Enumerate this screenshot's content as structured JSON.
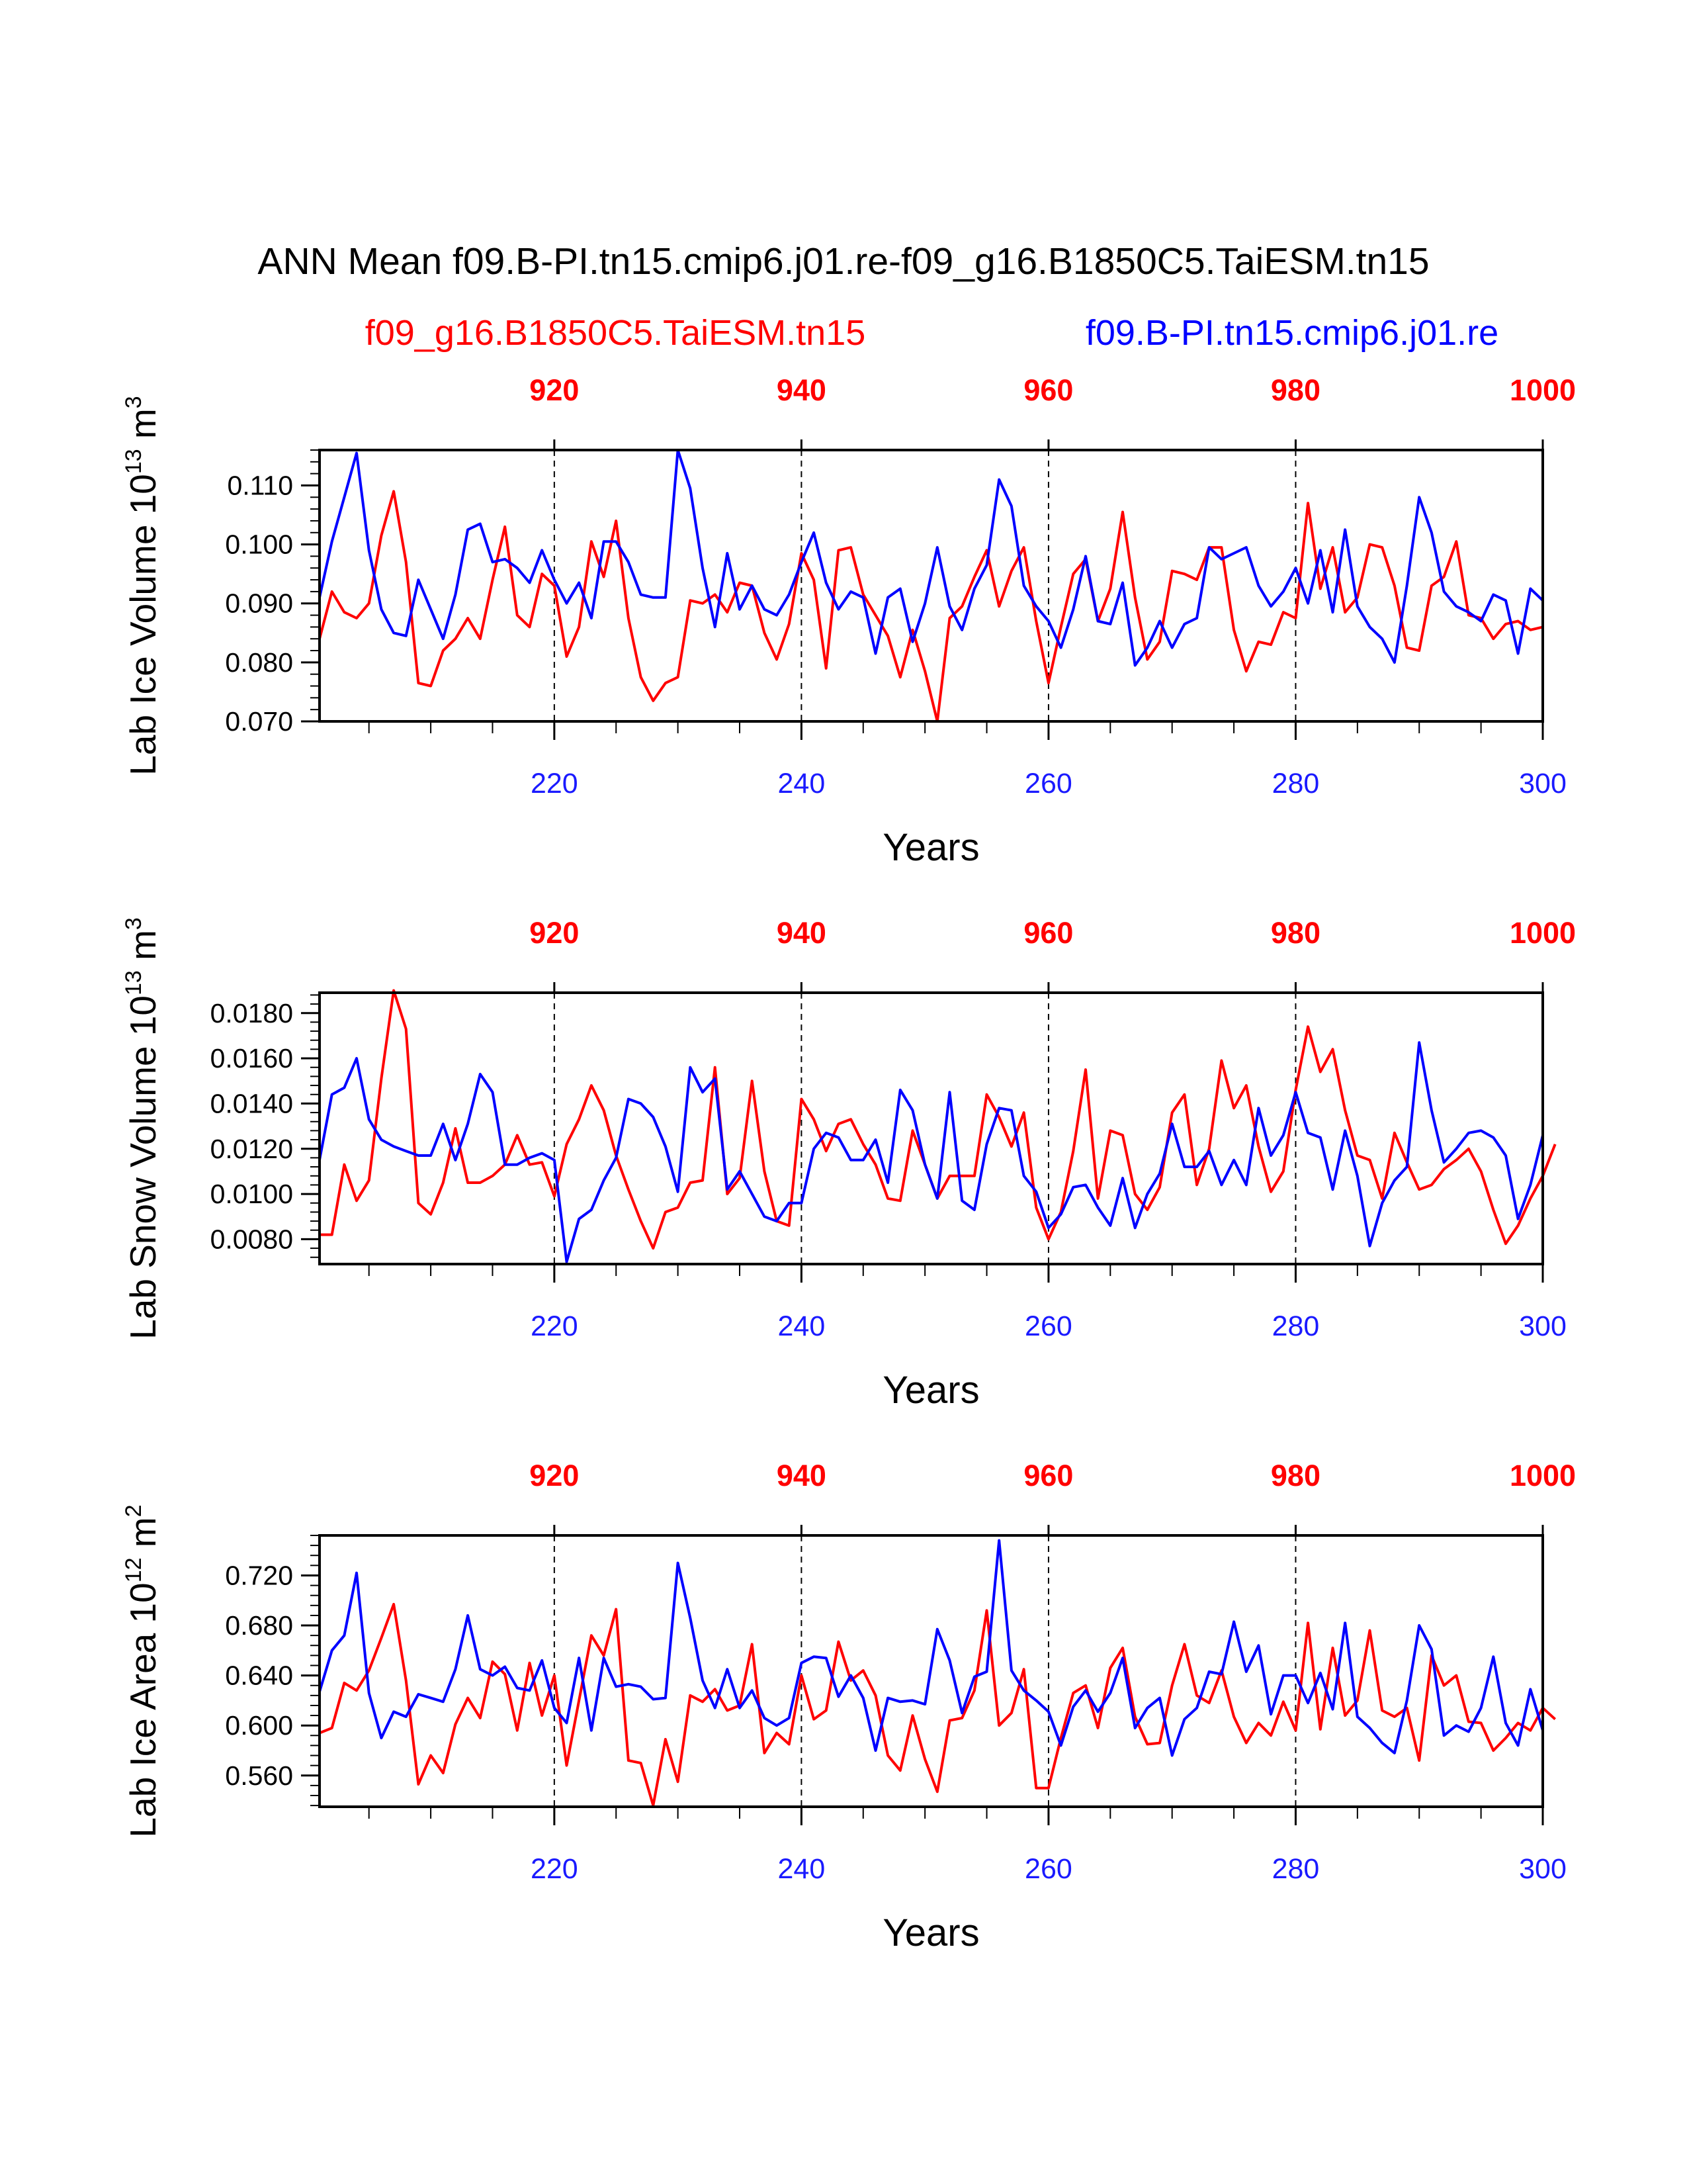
{
  "title": "ANN Mean f09.B-PI.tn15.cmip6.j01.re-f09_g16.B1850C5.TaiESM.tn15",
  "legend_left": "f09_g16.B1850C5.TaiESM.tn15",
  "legend_right": "f09.B-PI.tn15.cmip6.j01.re",
  "colors": {
    "case_red": "#ff0000",
    "case_blue": "#0000ff",
    "axis": "#000000"
  },
  "chart_data": [
    {
      "type": "line",
      "ylabel": "Lab Ice Volume 10",
      "ylabel_exp": "13",
      "ylabel_unit": "m",
      "ylabel_unit_exp": "3",
      "xlabel": "Years",
      "ylim": [
        0.07,
        0.116
      ],
      "yticks": [
        0.07,
        0.08,
        0.09,
        0.1,
        0.11
      ],
      "ytick_labels": [
        "0.070",
        "0.080",
        "0.090",
        "0.100",
        "0.110"
      ],
      "xlim": [
        201,
        300
      ],
      "xticks": [
        220,
        240,
        260,
        280,
        300
      ],
      "xtick_labels": [
        "220",
        "240",
        "260",
        "280",
        "300"
      ],
      "xlim_top": [
        901,
        1000
      ],
      "xticks_top": [
        920,
        940,
        960,
        980,
        1000
      ],
      "xtick_labels_top": [
        "920",
        "940",
        "960",
        "980",
        "1000"
      ],
      "series": [
        {
          "name": "f09_g16.B1850C5.TaiESM.tn15",
          "color": "#ff0000",
          "x_start": 901,
          "values": [
            0.084,
            0.092,
            0.0885,
            0.0875,
            0.09,
            0.1015,
            0.109,
            0.097,
            0.0765,
            0.076,
            0.082,
            0.084,
            0.0875,
            0.084,
            0.094,
            0.103,
            0.088,
            0.086,
            0.095,
            0.093,
            0.081,
            0.086,
            0.1005,
            0.0945,
            0.104,
            0.0875,
            0.0775,
            0.0735,
            0.0765,
            0.0775,
            0.0905,
            0.09,
            0.0915,
            0.0885,
            0.0935,
            0.093,
            0.085,
            0.0805,
            0.0865,
            0.0985,
            0.094,
            0.079,
            0.099,
            0.0995,
            0.0915,
            0.088,
            0.0845,
            0.0775,
            0.0855,
            0.0785,
            0.07,
            0.0875,
            0.0895,
            0.0945,
            0.099,
            0.0895,
            0.0955,
            0.0995,
            0.087,
            0.0765,
            0.086,
            0.095,
            0.0975,
            0.087,
            0.0925,
            0.1055,
            0.091,
            0.0805,
            0.0835,
            0.0955,
            0.095,
            0.094,
            0.0995,
            0.0995,
            0.0855,
            0.0785,
            0.0835,
            0.083,
            0.0885,
            0.0875,
            0.107,
            0.0925,
            0.0995,
            0.0885,
            0.091,
            0.1,
            0.0995,
            0.093,
            0.0825,
            0.082,
            0.093,
            0.0945,
            0.1005,
            0.088,
            0.0875,
            0.084,
            0.0865,
            0.087,
            0.0855,
            0.086
          ]
        },
        {
          "name": "f09.B-PI.tn15.cmip6.j01.re",
          "color": "#0000ff",
          "x_start": 201,
          "values": [
            0.091,
            0.1005,
            0.108,
            0.1155,
            0.099,
            0.089,
            0.085,
            0.0845,
            0.094,
            0.089,
            0.084,
            0.0915,
            0.1025,
            0.1035,
            0.097,
            0.0975,
            0.096,
            0.0935,
            0.099,
            0.094,
            0.09,
            0.0935,
            0.0875,
            0.1005,
            0.1005,
            0.097,
            0.0915,
            0.091,
            0.091,
            0.116,
            0.1095,
            0.096,
            0.086,
            0.0985,
            0.089,
            0.093,
            0.089,
            0.088,
            0.0915,
            0.097,
            0.102,
            0.0935,
            0.089,
            0.092,
            0.091,
            0.0815,
            0.091,
            0.0925,
            0.0835,
            0.09,
            0.0995,
            0.0895,
            0.0855,
            0.0925,
            0.0965,
            0.111,
            0.1065,
            0.093,
            0.0895,
            0.087,
            0.0825,
            0.089,
            0.098,
            0.087,
            0.0865,
            0.0935,
            0.0795,
            0.0825,
            0.087,
            0.0825,
            0.0865,
            0.0875,
            0.0995,
            0.0975,
            0.0985,
            0.0995,
            0.093,
            0.0895,
            0.092,
            0.096,
            0.09,
            0.099,
            0.0885,
            0.1025,
            0.0895,
            0.086,
            0.084,
            0.08,
            0.093,
            0.108,
            0.102,
            0.092,
            0.0895,
            0.0885,
            0.087,
            0.0915,
            0.0905,
            0.0815,
            0.0925,
            0.0905
          ]
        }
      ]
    },
    {
      "type": "line",
      "ylabel": "Lab Snow Volume 10",
      "ylabel_exp": "13",
      "ylabel_unit": "m",
      "ylabel_unit_exp": "3",
      "xlabel": "Years",
      "ylim": [
        0.0069,
        0.0189
      ],
      "yticks": [
        0.008,
        0.01,
        0.012,
        0.014,
        0.016,
        0.018
      ],
      "ytick_labels": [
        "0.0080",
        "0.0100",
        "0.0120",
        "0.0140",
        "0.0160",
        "0.0180"
      ],
      "xlim": [
        201,
        300
      ],
      "xticks": [
        220,
        240,
        260,
        280,
        300
      ],
      "xtick_labels": [
        "220",
        "240",
        "260",
        "280",
        "300"
      ],
      "xlim_top": [
        901,
        1000
      ],
      "xticks_top": [
        920,
        940,
        960,
        980,
        1000
      ],
      "xtick_labels_top": [
        "920",
        "940",
        "960",
        "980",
        "1000"
      ],
      "series": [
        {
          "name": "f09_g16.B1850C5.TaiESM.tn15",
          "color": "#ff0000",
          "x_start": 901,
          "values": [
            0.0082,
            0.0082,
            0.0113,
            0.0097,
            0.0106,
            0.0151,
            0.019,
            0.0173,
            0.0096,
            0.0091,
            0.0105,
            0.0129,
            0.0105,
            0.0105,
            0.0108,
            0.0113,
            0.0126,
            0.0113,
            0.0114,
            0.0099,
            0.0122,
            0.0133,
            0.0148,
            0.0137,
            0.0117,
            0.0102,
            0.0088,
            0.0076,
            0.0092,
            0.0094,
            0.0105,
            0.0106,
            0.0156,
            0.01,
            0.0107,
            0.015,
            0.011,
            0.0088,
            0.0086,
            0.0142,
            0.0133,
            0.0119,
            0.0131,
            0.0133,
            0.0122,
            0.0113,
            0.0098,
            0.0097,
            0.0128,
            0.0113,
            0.0098,
            0.0108,
            0.0108,
            0.0108,
            0.0144,
            0.0134,
            0.0121,
            0.0136,
            0.0094,
            0.008,
            0.0092,
            0.0119,
            0.0155,
            0.0098,
            0.0128,
            0.0126,
            0.01,
            0.0093,
            0.0103,
            0.0136,
            0.0144,
            0.0104,
            0.012,
            0.0159,
            0.0138,
            0.0148,
            0.0121,
            0.0101,
            0.011,
            0.0146,
            0.0174,
            0.0154,
            0.0164,
            0.0137,
            0.0117,
            0.0115,
            0.0098,
            0.0127,
            0.0114,
            0.0102,
            0.0104,
            0.0111,
            0.0115,
            0.012,
            0.011,
            0.0093,
            0.0078,
            0.0086,
            0.0098,
            0.0108,
            0.0122
          ]
        },
        {
          "name": "f09.B-PI.tn15.cmip6.j01.re",
          "color": "#0000ff",
          "x_start": 201,
          "values": [
            0.0115,
            0.0144,
            0.0147,
            0.016,
            0.0133,
            0.0124,
            0.0121,
            0.0119,
            0.0117,
            0.0117,
            0.0131,
            0.0115,
            0.0131,
            0.0153,
            0.0145,
            0.0113,
            0.0113,
            0.0116,
            0.0118,
            0.0115,
            0.007,
            0.0089,
            0.0093,
            0.0106,
            0.0116,
            0.0142,
            0.014,
            0.0134,
            0.0121,
            0.0101,
            0.0156,
            0.0145,
            0.0151,
            0.0102,
            0.011,
            0.01,
            0.009,
            0.0088,
            0.0096,
            0.0096,
            0.012,
            0.0127,
            0.0125,
            0.0115,
            0.0115,
            0.0124,
            0.0105,
            0.0146,
            0.0137,
            0.0113,
            0.0098,
            0.0145,
            0.0097,
            0.0093,
            0.0122,
            0.0138,
            0.0137,
            0.0108,
            0.0101,
            0.0085,
            0.0091,
            0.0103,
            0.0104,
            0.0094,
            0.0086,
            0.0107,
            0.0085,
            0.01,
            0.0109,
            0.0131,
            0.0112,
            0.0112,
            0.0119,
            0.0104,
            0.0115,
            0.0104,
            0.0138,
            0.0117,
            0.0126,
            0.0145,
            0.0127,
            0.0125,
            0.0102,
            0.0128,
            0.0108,
            0.0077,
            0.0096,
            0.0106,
            0.0112,
            0.0167,
            0.0137,
            0.0114,
            0.012,
            0.0127,
            0.0128,
            0.0125,
            0.0117,
            0.0089,
            0.0104,
            0.0126
          ]
        }
      ]
    },
    {
      "type": "line",
      "ylabel": "Lab Ice Area 10",
      "ylabel_exp": "12",
      "ylabel_unit": "m",
      "ylabel_unit_exp": "2",
      "xlabel": "Years",
      "ylim": [
        0.535,
        0.752
      ],
      "yticks": [
        0.56,
        0.6,
        0.64,
        0.68,
        0.72
      ],
      "ytick_labels": [
        "0.560",
        "0.600",
        "0.640",
        "0.680",
        "0.720"
      ],
      "xlim": [
        201,
        300
      ],
      "xticks": [
        220,
        240,
        260,
        280,
        300
      ],
      "xtick_labels": [
        "220",
        "240",
        "260",
        "280",
        "300"
      ],
      "xlim_top": [
        901,
        1000
      ],
      "xticks_top": [
        920,
        940,
        960,
        980,
        1000
      ],
      "xtick_labels_top": [
        "920",
        "940",
        "960",
        "980",
        "1000"
      ],
      "series": [
        {
          "name": "f09_g16.B1850C5.TaiESM.tn15",
          "color": "#ff0000",
          "x_start": 901,
          "values": [
            0.594,
            0.598,
            0.634,
            0.628,
            0.644,
            0.67,
            0.697,
            0.636,
            0.553,
            0.576,
            0.562,
            0.601,
            0.622,
            0.606,
            0.651,
            0.641,
            0.596,
            0.65,
            0.608,
            0.64,
            0.568,
            0.62,
            0.672,
            0.656,
            0.693,
            0.572,
            0.57,
            0.536,
            0.589,
            0.555,
            0.624,
            0.619,
            0.629,
            0.612,
            0.616,
            0.665,
            0.578,
            0.594,
            0.585,
            0.64,
            0.605,
            0.612,
            0.667,
            0.636,
            0.644,
            0.624,
            0.576,
            0.564,
            0.608,
            0.573,
            0.547,
            0.604,
            0.606,
            0.628,
            0.692,
            0.6,
            0.61,
            0.645,
            0.55,
            0.55,
            0.59,
            0.626,
            0.632,
            0.598,
            0.646,
            0.662,
            0.607,
            0.585,
            0.586,
            0.632,
            0.665,
            0.624,
            0.618,
            0.644,
            0.607,
            0.586,
            0.602,
            0.592,
            0.619,
            0.596,
            0.682,
            0.597,
            0.662,
            0.608,
            0.62,
            0.676,
            0.612,
            0.607,
            0.614,
            0.572,
            0.656,
            0.632,
            0.64,
            0.603,
            0.602,
            0.58,
            0.59,
            0.602,
            0.596,
            0.614,
            0.605
          ]
        },
        {
          "name": "f09.B-PI.tn15.cmip6.j01.re",
          "color": "#0000ff",
          "x_start": 201,
          "values": [
            0.627,
            0.66,
            0.672,
            0.722,
            0.626,
            0.59,
            0.611,
            0.607,
            0.625,
            0.622,
            0.619,
            0.645,
            0.688,
            0.645,
            0.64,
            0.647,
            0.63,
            0.628,
            0.652,
            0.614,
            0.602,
            0.654,
            0.596,
            0.654,
            0.631,
            0.633,
            0.631,
            0.621,
            0.622,
            0.73,
            0.686,
            0.636,
            0.614,
            0.645,
            0.614,
            0.628,
            0.606,
            0.6,
            0.606,
            0.65,
            0.655,
            0.654,
            0.623,
            0.64,
            0.622,
            0.58,
            0.622,
            0.619,
            0.62,
            0.617,
            0.677,
            0.652,
            0.61,
            0.639,
            0.643,
            0.748,
            0.644,
            0.628,
            0.62,
            0.611,
            0.584,
            0.615,
            0.628,
            0.611,
            0.626,
            0.654,
            0.598,
            0.614,
            0.622,
            0.576,
            0.605,
            0.614,
            0.643,
            0.641,
            0.683,
            0.643,
            0.664,
            0.609,
            0.64,
            0.64,
            0.618,
            0.642,
            0.613,
            0.682,
            0.607,
            0.598,
            0.586,
            0.578,
            0.62,
            0.68,
            0.661,
            0.592,
            0.6,
            0.595,
            0.614,
            0.655,
            0.602,
            0.584,
            0.629,
            0.596
          ]
        }
      ]
    }
  ]
}
